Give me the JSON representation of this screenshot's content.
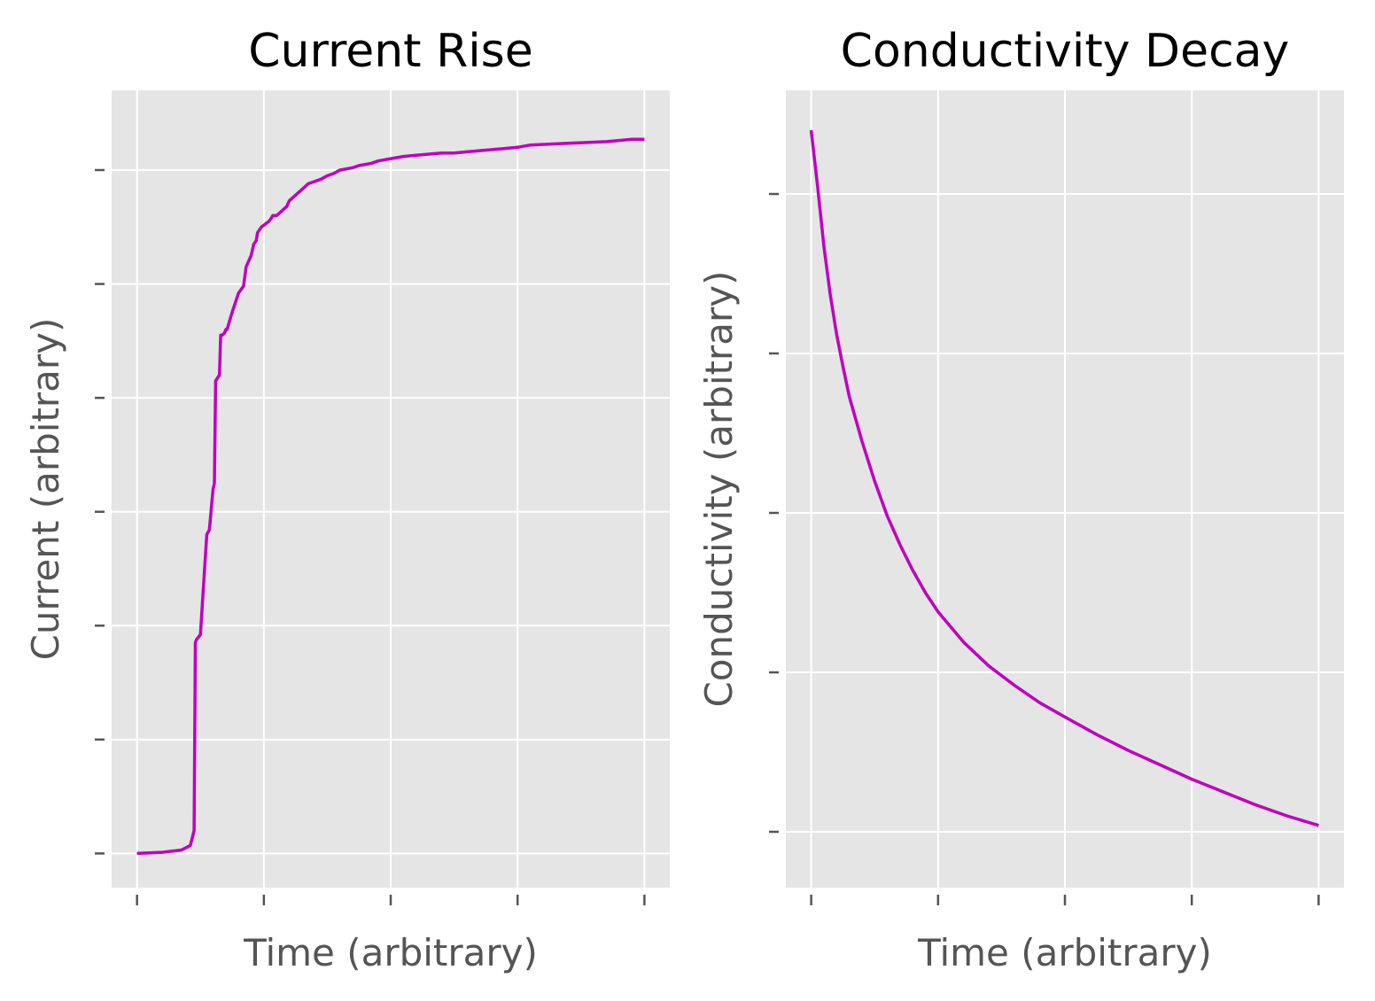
{
  "colors": {
    "plot_background": "#e5e5e5",
    "grid": "#ffffff",
    "tick": "#555555",
    "line": "#bf00bf",
    "title": "#000000",
    "axis_label": "#555555"
  },
  "chart_data": [
    {
      "type": "line",
      "title": "Current Rise",
      "xlabel": "Time (arbitrary)",
      "ylabel": "Current (arbitrary)",
      "tick_labels_shown": false,
      "grid": true,
      "xlim": [
        -0.2,
        4.2
      ],
      "ylim": [
        -0.3,
        6.7
      ],
      "x_ticks": [
        0,
        1,
        2,
        3,
        4
      ],
      "y_ticks": [
        0,
        1,
        2,
        3,
        4,
        5,
        6
      ],
      "series": [
        {
          "x": [
            0,
            0.2,
            0.35,
            0.42,
            0.45,
            0.46,
            0.47,
            0.5,
            0.55,
            0.56,
            0.57,
            0.6,
            0.61,
            0.62,
            0.65,
            0.66,
            0.67,
            0.69,
            0.7,
            0.71,
            0.75,
            0.8,
            0.82,
            0.84,
            0.86,
            0.88,
            0.9,
            0.92,
            0.94,
            0.95,
            0.98,
            1.04,
            1.06,
            1.07,
            1.1,
            1.12,
            1.15,
            1.18,
            1.2,
            1.25,
            1.27,
            1.3,
            1.33,
            1.35,
            1.4,
            1.45,
            1.5,
            1.55,
            1.6,
            1.7,
            1.75,
            1.8,
            1.85,
            1.9,
            2.0,
            2.1,
            2.2,
            2.3,
            2.4,
            2.5,
            2.6,
            2.7,
            2.8,
            2.9,
            3.0,
            3.1,
            3.3,
            3.5,
            3.7,
            3.8,
            3.9,
            4.0
          ],
          "y": [
            0,
            0.01,
            0.03,
            0.07,
            0.2,
            1.85,
            1.88,
            1.92,
            2.8,
            2.82,
            2.84,
            3.2,
            3.25,
            4.15,
            4.2,
            4.55,
            4.55,
            4.57,
            4.6,
            4.6,
            4.75,
            4.92,
            4.95,
            4.98,
            5.15,
            5.2,
            5.25,
            5.35,
            5.38,
            5.45,
            5.5,
            5.55,
            5.58,
            5.6,
            5.6,
            5.62,
            5.65,
            5.68,
            5.73,
            5.78,
            5.8,
            5.83,
            5.86,
            5.88,
            5.9,
            5.92,
            5.95,
            5.97,
            6.0,
            6.02,
            6.04,
            6.05,
            6.06,
            6.08,
            6.1,
            6.12,
            6.13,
            6.14,
            6.15,
            6.15,
            6.16,
            6.17,
            6.18,
            6.19,
            6.2,
            6.22,
            6.23,
            6.24,
            6.25,
            6.26,
            6.27,
            6.27
          ]
        }
      ]
    },
    {
      "type": "line",
      "title": "Conductivity Decay",
      "xlabel": "Time (arbitrary)",
      "ylabel": "Conductivity (arbitrary)",
      "tick_labels_shown": false,
      "grid": true,
      "xlim": [
        -0.2,
        4.2
      ],
      "ylim": [
        -0.35,
        4.65
      ],
      "x_ticks": [
        0,
        1,
        2,
        3,
        4
      ],
      "y_ticks": [
        0,
        1,
        2,
        3,
        4
      ],
      "series": [
        {
          "x": [
            0,
            0.05,
            0.1,
            0.15,
            0.2,
            0.25,
            0.3,
            0.4,
            0.5,
            0.6,
            0.7,
            0.8,
            0.9,
            1.0,
            1.2,
            1.4,
            1.6,
            1.8,
            2.0,
            2.25,
            2.5,
            2.75,
            3.0,
            3.25,
            3.5,
            3.75,
            4.0
          ],
          "y": [
            4.4,
            4.05,
            3.67,
            3.37,
            3.12,
            2.92,
            2.73,
            2.45,
            2.2,
            1.98,
            1.8,
            1.64,
            1.5,
            1.38,
            1.19,
            1.04,
            0.92,
            0.81,
            0.72,
            0.61,
            0.51,
            0.42,
            0.33,
            0.25,
            0.17,
            0.1,
            0.04
          ]
        }
      ]
    }
  ]
}
